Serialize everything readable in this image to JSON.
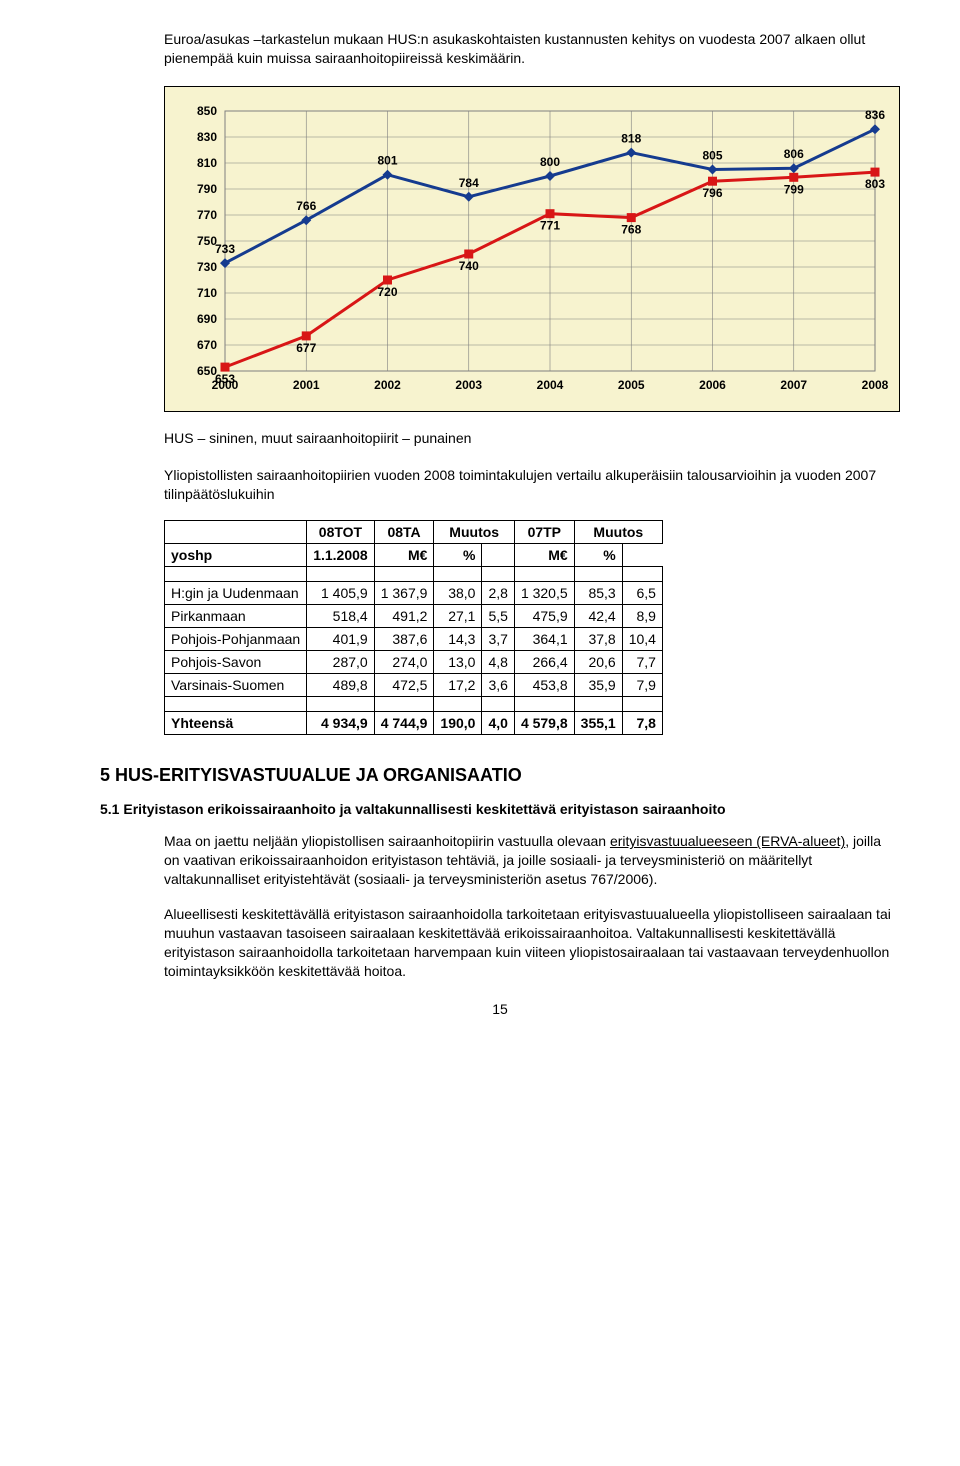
{
  "intro": "Euroa/asukas –tarkastelun mukaan HUS:n asukaskohtaisten kustannusten kehitys on vuodesta 2007 alkaen ollut pienempää kuin muissa sairaanhoitopiireissä keskimäärin.",
  "chart": {
    "type": "line",
    "background_color": "#f7f3cf",
    "grid_color": "#7f7f7f",
    "plot_bg": "#f7f3cf",
    "x_categories": [
      "2000",
      "2001",
      "2002",
      "2003",
      "2004",
      "2005",
      "2006",
      "2007",
      "2008"
    ],
    "ylim": [
      650,
      850
    ],
    "ytick_step": 20,
    "yticks": [
      "850",
      "830",
      "810",
      "790",
      "770",
      "750",
      "730",
      "710",
      "690",
      "670",
      "650"
    ],
    "series": [
      {
        "name": "HUS (sininen)",
        "color": "#153b8f",
        "marker": "diamond",
        "marker_size": 10,
        "line_width": 3,
        "values": [
          733,
          766,
          801,
          784,
          800,
          818,
          805,
          806,
          836
        ],
        "label_fontsize": 12,
        "label_weight": "bold"
      },
      {
        "name": "muut sairaanhoitopiirit (punainen)",
        "color": "#d81616",
        "marker": "square",
        "marker_size": 9,
        "line_width": 3,
        "values": [
          653,
          677,
          720,
          740,
          771,
          768,
          796,
          799,
          803
        ],
        "label_fontsize": 12,
        "label_weight": "bold"
      }
    ],
    "axis_font_size": 12
  },
  "chart_caption": "HUS –  sininen,  muut sairaanhoitopiirit –  punainen",
  "subintro": "Yliopistollisten sairaanhoitopiirien vuoden 2008 toimintakulujen vertailu alkuperäisiin talousarvioihin ja vuoden 2007 tilinpäätöslukuihin",
  "table": {
    "columns": [
      "",
      "08TOT",
      "08TA",
      "Muutos",
      "",
      "07TP",
      "Muutos",
      ""
    ],
    "subheader": [
      "yoshp",
      "1.1.2008",
      "M€",
      "%",
      "",
      "M€",
      "%"
    ],
    "rows": [
      [
        "H:gin ja Uudenmaan",
        "1 405,9",
        "1 367,9",
        "38,0",
        "2,8",
        "1 320,5",
        "85,3",
        "6,5"
      ],
      [
        "Pirkanmaan",
        "518,4",
        "491,2",
        "27,1",
        "5,5",
        "475,9",
        "42,4",
        "8,9"
      ],
      [
        "Pohjois-Pohjanmaan",
        "401,9",
        "387,6",
        "14,3",
        "3,7",
        "364,1",
        "37,8",
        "10,4"
      ],
      [
        "Pohjois-Savon",
        "287,0",
        "274,0",
        "13,0",
        "4,8",
        "266,4",
        "20,6",
        "7,7"
      ],
      [
        "Varsinais-Suomen",
        "489,8",
        "472,5",
        "17,2",
        "3,6",
        "453,8",
        "35,9",
        "7,9"
      ]
    ],
    "total": [
      "Yhteensä",
      "4 934,9",
      "4 744,9",
      "190,0",
      "4,0",
      "4 579,8",
      "355,1",
      "7,8"
    ]
  },
  "section5_title": "5  HUS-ERITYISVASTUUALUE JA ORGANISAATIO",
  "section51_title": "5.1  Erityistason erikoissairaanhoito ja valtakunnallisesti keskitettävä erityistason sairaanhoito",
  "p1_a": "Maa on jaettu neljään yliopistollisen sairaanhoitopiirin vastuulla olevaan ",
  "p1_u": "erityisvastuualueeseen  (ERVA-alueet)",
  "p1_b": ", joilla on vaativan erikoissairaanhoidon erityistason tehtäviä,  ja joille sosiaali- ja terveysministeriö on määritellyt valtakunnalliset erityistehtävät (sosiaali- ja terveysministeriön asetus 767/2006).",
  "p2": "Alueellisesti keskitettävällä erityistason sairaanhoidolla tarkoitetaan erityisvastuualueella yliopistolliseen sairaalaan tai muuhun vastaavan tasoiseen sairaalaan keskitettävää erikoissairaanhoitoa. Valtakunnallisesti keskitettävällä erityistason sairaanhoidolla tarkoitetaan harvempaan kuin viiteen yliopistosairaalaan tai vastaavaan terveydenhuollon toimintayksikköön keskitettävää hoitoa.",
  "page_number": "15"
}
